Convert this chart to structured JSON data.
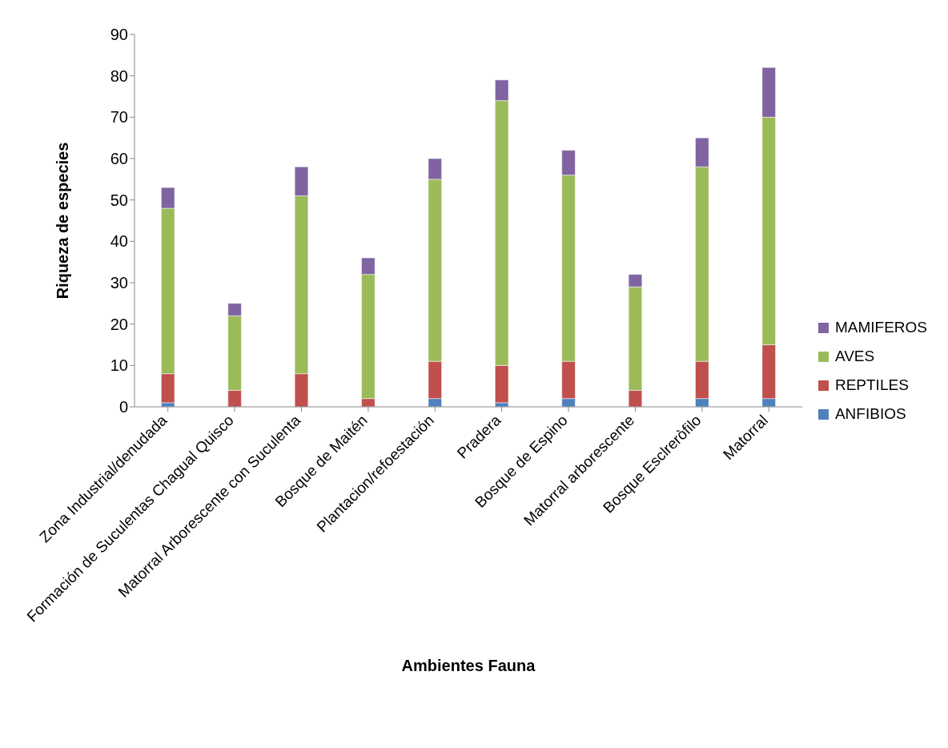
{
  "chart_data": {
    "type": "bar",
    "stacked": true,
    "xlabel": "Ambientes Fauna",
    "ylabel": "Riqueza de especies",
    "categories": [
      "Zona Industrial/denudada",
      "Formación de Suculentas Chagual Quisco",
      "Matorral Arborescente con Suculenta",
      "Bosque de Maitén",
      "Plantacion/refoestación",
      "Pradera",
      "Bosque de Espino",
      "Matorral arborescente",
      "Bosque Esclreròfilo",
      "Matorral"
    ],
    "series": [
      {
        "name": "ANFIBIOS",
        "color": "#4f81bd",
        "values": [
          1,
          0,
          0,
          0,
          2,
          1,
          2,
          0,
          2,
          2
        ]
      },
      {
        "name": "REPTILES",
        "color": "#c0504d",
        "values": [
          7,
          4,
          8,
          2,
          9,
          9,
          9,
          4,
          9,
          13
        ]
      },
      {
        "name": "AVES",
        "color": "#9bbb59",
        "values": [
          40,
          18,
          43,
          30,
          44,
          64,
          45,
          25,
          47,
          55
        ]
      },
      {
        "name": "MAMIFEROS",
        "color": "#8064a2",
        "values": [
          5,
          3,
          7,
          4,
          5,
          5,
          6,
          3,
          7,
          12
        ]
      }
    ],
    "ylim": [
      0,
      90
    ],
    "yticks": [
      0,
      10,
      20,
      30,
      40,
      50,
      60,
      70,
      80,
      90
    ],
    "grid": false,
    "legend": "right"
  }
}
